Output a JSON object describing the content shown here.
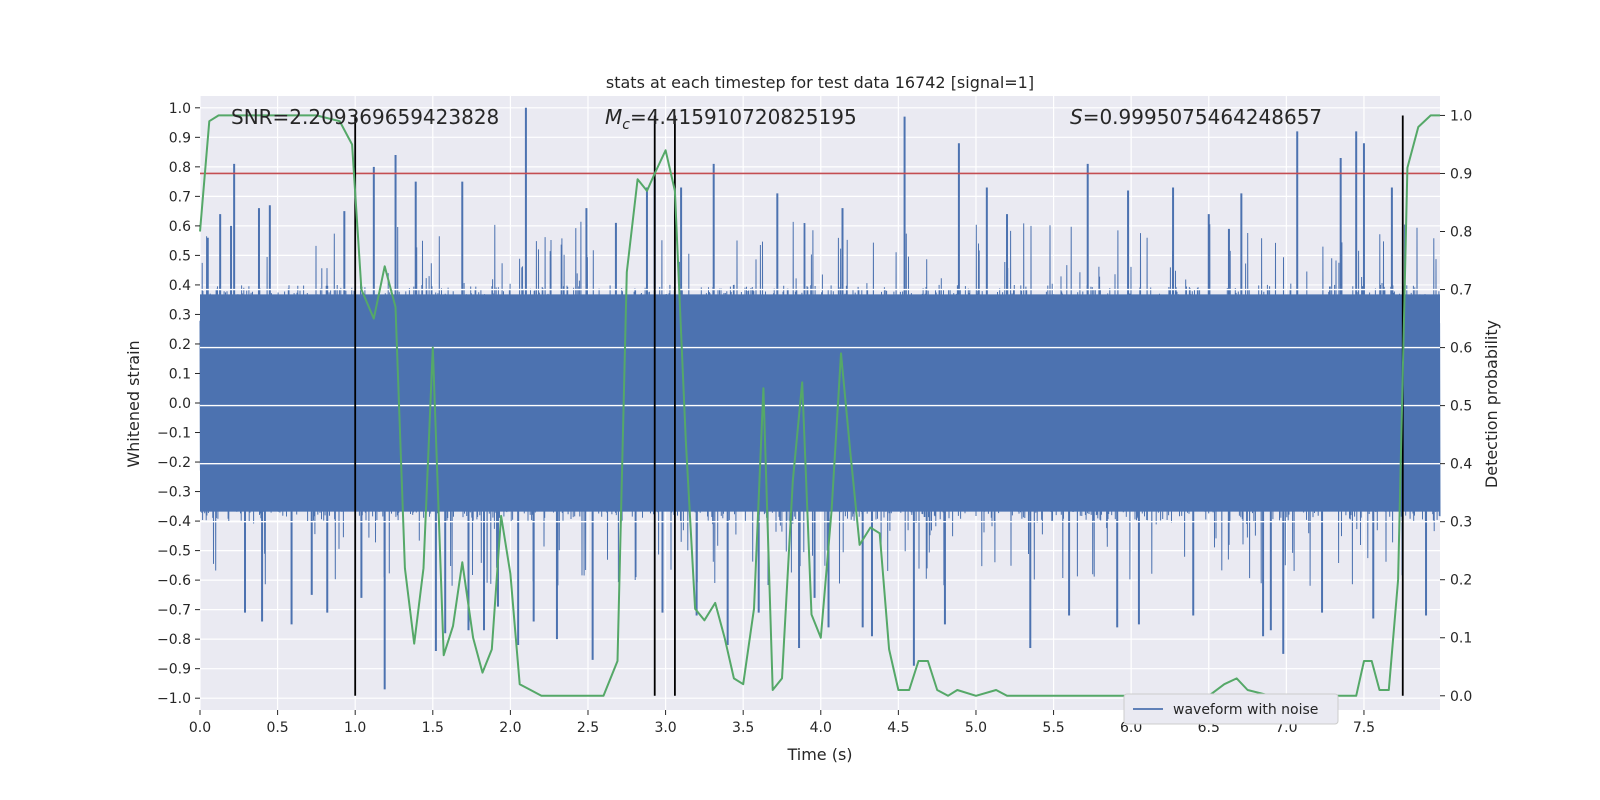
{
  "chart_data": {
    "type": "line",
    "title": "stats at each timestep for test data 16742 [signal=1]",
    "xlabel": "Time (s)",
    "ylabel": "Whitened strain",
    "y2label": "Detection probability",
    "xlim": [
      0.0,
      7.99
    ],
    "ylim": [
      -1.04,
      1.04
    ],
    "y2lim": [
      -0.0245,
      1.0335
    ],
    "x_ticks": [
      0.0,
      0.5,
      1.0,
      1.5,
      2.0,
      2.5,
      3.0,
      3.5,
      4.0,
      4.5,
      5.0,
      5.5,
      6.0,
      6.5,
      7.0,
      7.5
    ],
    "x_tick_labels": [
      "0.0",
      "0.5",
      "1.0",
      "1.5",
      "2.0",
      "2.5",
      "3.0",
      "3.5",
      "4.0",
      "4.5",
      "5.0",
      "5.5",
      "6.0",
      "6.5",
      "7.0",
      "7.5"
    ],
    "y_ticks": [
      1.0,
      0.9,
      0.8,
      0.7,
      0.6,
      0.5,
      0.4,
      0.3,
      0.2,
      0.1,
      0.0,
      -0.1,
      -0.2,
      -0.3,
      -0.4,
      -0.5,
      -0.6,
      -0.7,
      -0.8,
      -0.9,
      -1.0
    ],
    "y_tick_labels": [
      "1.0",
      "0.9",
      "0.8",
      "0.7",
      "0.6",
      "0.5",
      "0.4",
      "0.3",
      "0.2",
      "0.1",
      "0.0",
      "−0.1",
      "−0.2",
      "−0.3",
      "−0.4",
      "−0.5",
      "−0.6",
      "−0.7",
      "−0.8",
      "−0.9",
      "−1.0"
    ],
    "y2_ticks": [
      1.0,
      0.9,
      0.8,
      0.7,
      0.6,
      0.5,
      0.4,
      0.3,
      0.2,
      0.1,
      0.0
    ],
    "y2_tick_labels": [
      "1.0",
      "0.9",
      "0.8",
      "0.7",
      "0.6",
      "0.5",
      "0.4",
      "0.3",
      "0.2",
      "0.1",
      "0.0"
    ],
    "grid": true,
    "legend": {
      "placement": "lower-right",
      "entries": [
        "waveform with noise"
      ]
    },
    "stats": {
      "snr": "SNR=2.209369659423828",
      "mc_symbol": "M",
      "mc_sub": "c",
      "mc_value": "=4.415910720825195",
      "s_symbol": "S",
      "s_value": "=0.9995075464248657"
    },
    "threshold": {
      "value": 0.9,
      "axis": "y2",
      "color": "#c44e52"
    },
    "vertical_markers": [
      1.0,
      2.93,
      3.06,
      7.75
    ],
    "series": [
      {
        "name": "waveform with noise",
        "axis": "y1",
        "color": "#4c72b0",
        "kind": "noise",
        "envelope": 0.4,
        "peaks": [
          [
            0.05,
            0.56
          ],
          [
            0.13,
            0.64
          ],
          [
            0.2,
            0.6
          ],
          [
            0.22,
            0.81
          ],
          [
            0.29,
            -0.71
          ],
          [
            0.38,
            0.66
          ],
          [
            0.4,
            -0.74
          ],
          [
            0.45,
            0.67
          ],
          [
            0.59,
            -0.75
          ],
          [
            0.72,
            -0.65
          ],
          [
            0.82,
            -0.71
          ],
          [
            0.93,
            0.65
          ],
          [
            1.04,
            -0.66
          ],
          [
            1.12,
            0.8
          ],
          [
            1.19,
            -0.97
          ],
          [
            1.26,
            0.84
          ],
          [
            1.39,
            0.75
          ],
          [
            1.52,
            -0.84
          ],
          [
            1.58,
            -0.78
          ],
          [
            1.69,
            0.75
          ],
          [
            1.73,
            -0.77
          ],
          [
            1.83,
            -0.77
          ],
          [
            1.92,
            -0.69
          ],
          [
            2.05,
            -0.82
          ],
          [
            2.1,
            1.0
          ],
          [
            2.15,
            -0.74
          ],
          [
            2.3,
            -0.8
          ],
          [
            2.49,
            0.66
          ],
          [
            2.53,
            -0.87
          ],
          [
            2.68,
            0.61
          ],
          [
            2.88,
            0.73
          ],
          [
            2.93,
            0.76
          ],
          [
            2.98,
            -0.71
          ],
          [
            3.1,
            0.73
          ],
          [
            3.2,
            -0.72
          ],
          [
            3.31,
            0.81
          ],
          [
            3.4,
            -0.82
          ],
          [
            3.6,
            -0.71
          ],
          [
            3.72,
            0.71
          ],
          [
            3.86,
            -0.83
          ],
          [
            3.96,
            -0.66
          ],
          [
            4.05,
            -0.76
          ],
          [
            4.14,
            0.66
          ],
          [
            4.27,
            -0.76
          ],
          [
            4.33,
            -0.79
          ],
          [
            4.54,
            0.97
          ],
          [
            4.6,
            -0.89
          ],
          [
            4.8,
            -0.75
          ],
          [
            4.89,
            0.88
          ],
          [
            5.07,
            0.73
          ],
          [
            5.2,
            0.64
          ],
          [
            5.35,
            -0.83
          ],
          [
            5.6,
            -0.72
          ],
          [
            5.72,
            0.81
          ],
          [
            5.91,
            -0.76
          ],
          [
            5.98,
            0.72
          ],
          [
            6.05,
            -0.75
          ],
          [
            6.27,
            0.73
          ],
          [
            6.4,
            -0.72
          ],
          [
            6.5,
            0.64
          ],
          [
            6.63,
            0.59
          ],
          [
            6.71,
            0.71
          ],
          [
            6.85,
            -0.79
          ],
          [
            6.9,
            -0.77
          ],
          [
            6.98,
            -0.85
          ],
          [
            7.07,
            0.92
          ],
          [
            7.23,
            -0.71
          ],
          [
            7.35,
            0.83
          ],
          [
            7.45,
            0.92
          ],
          [
            7.5,
            0.88
          ],
          [
            7.56,
            -0.73
          ],
          [
            7.68,
            0.73
          ],
          [
            7.9,
            -0.72
          ]
        ]
      },
      {
        "name": "",
        "axis": "y2",
        "color": "#55a868",
        "kind": "line",
        "x": [
          0.0,
          0.06,
          0.12,
          0.25,
          0.5,
          0.75,
          0.9,
          0.98,
          1.04,
          1.12,
          1.19,
          1.26,
          1.32,
          1.38,
          1.44,
          1.5,
          1.57,
          1.63,
          1.69,
          1.76,
          1.82,
          1.88,
          1.94,
          2.0,
          2.06,
          2.13,
          2.2,
          2.26,
          2.35,
          2.5,
          2.6,
          2.69,
          2.75,
          2.82,
          2.88,
          2.93,
          3.0,
          3.06,
          3.13,
          3.19,
          3.25,
          3.32,
          3.38,
          3.44,
          3.5,
          3.57,
          3.63,
          3.69,
          3.75,
          3.82,
          3.88,
          3.94,
          4.0,
          4.07,
          4.13,
          4.19,
          4.25,
          4.32,
          4.38,
          4.44,
          4.5,
          4.57,
          4.63,
          4.69,
          4.75,
          4.82,
          4.88,
          5.0,
          5.13,
          5.2,
          5.3,
          5.4,
          5.5,
          5.75,
          6.0,
          6.25,
          6.4,
          6.5,
          6.6,
          6.68,
          6.75,
          6.9,
          7.1,
          7.3,
          7.45,
          7.5,
          7.55,
          7.6,
          7.66,
          7.72,
          7.78,
          7.85,
          7.93,
          7.99
        ],
        "y": [
          0.8,
          0.99,
          1.0,
          1.0,
          1.0,
          1.0,
          0.99,
          0.95,
          0.7,
          0.65,
          0.74,
          0.67,
          0.22,
          0.09,
          0.22,
          0.6,
          0.07,
          0.12,
          0.23,
          0.1,
          0.04,
          0.08,
          0.31,
          0.21,
          0.02,
          0.01,
          0.0,
          0.0,
          0.0,
          0.0,
          0.0,
          0.06,
          0.73,
          0.89,
          0.87,
          0.9,
          0.94,
          0.87,
          0.44,
          0.15,
          0.13,
          0.16,
          0.1,
          0.03,
          0.02,
          0.15,
          0.53,
          0.01,
          0.03,
          0.37,
          0.54,
          0.14,
          0.1,
          0.32,
          0.59,
          0.42,
          0.26,
          0.29,
          0.28,
          0.08,
          0.01,
          0.01,
          0.06,
          0.06,
          0.01,
          0.0,
          0.01,
          0.0,
          0.01,
          0.0,
          0.0,
          0.0,
          0.0,
          0.0,
          0.0,
          0.0,
          0.0,
          0.0,
          0.02,
          0.03,
          0.01,
          0.0,
          0.0,
          0.0,
          0.0,
          0.06,
          0.06,
          0.01,
          0.01,
          0.2,
          0.91,
          0.98,
          1.0,
          1.0
        ]
      }
    ]
  }
}
